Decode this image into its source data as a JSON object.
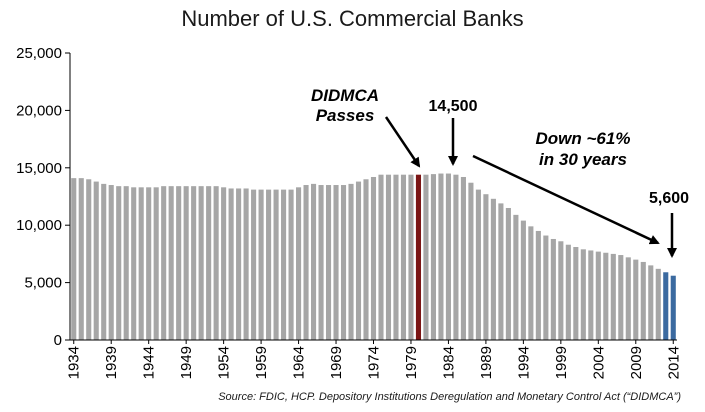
{
  "chart_data": {
    "type": "bar",
    "title": "Number of U.S. Commercial Banks",
    "xlabel": "",
    "ylabel": "",
    "ylim": [
      0,
      25000
    ],
    "yticks": [
      0,
      5000,
      10000,
      15000,
      20000,
      25000
    ],
    "ytick_labels": [
      "0",
      "5,000",
      "10,000",
      "15,000",
      "20,000",
      "25,000"
    ],
    "xtick_labels": [
      "1934",
      "1939",
      "1944",
      "1949",
      "1954",
      "1959",
      "1964",
      "1969",
      "1974",
      "1979",
      "1984",
      "1989",
      "1994",
      "1999",
      "2004",
      "2009",
      "2014"
    ],
    "categories": [
      1934,
      1935,
      1936,
      1937,
      1938,
      1939,
      1940,
      1941,
      1942,
      1943,
      1944,
      1945,
      1946,
      1947,
      1948,
      1949,
      1950,
      1951,
      1952,
      1953,
      1954,
      1955,
      1956,
      1957,
      1958,
      1959,
      1960,
      1961,
      1962,
      1963,
      1964,
      1965,
      1966,
      1967,
      1968,
      1969,
      1970,
      1971,
      1972,
      1973,
      1974,
      1975,
      1976,
      1977,
      1978,
      1979,
      1980,
      1981,
      1982,
      1983,
      1984,
      1985,
      1986,
      1987,
      1988,
      1989,
      1990,
      1991,
      1992,
      1993,
      1994,
      1995,
      1996,
      1997,
      1998,
      1999,
      2000,
      2001,
      2002,
      2003,
      2004,
      2005,
      2006,
      2007,
      2008,
      2009,
      2010,
      2011,
      2012,
      2013,
      2014
    ],
    "values": [
      14100,
      14100,
      14000,
      13800,
      13600,
      13500,
      13400,
      13400,
      13300,
      13300,
      13300,
      13300,
      13400,
      13400,
      13400,
      13400,
      13400,
      13400,
      13400,
      13400,
      13300,
      13200,
      13200,
      13200,
      13100,
      13100,
      13100,
      13100,
      13100,
      13100,
      13300,
      13500,
      13600,
      13500,
      13500,
      13500,
      13500,
      13600,
      13800,
      14000,
      14200,
      14400,
      14400,
      14400,
      14400,
      14400,
      14400,
      14400,
      14450,
      14500,
      14500,
      14400,
      14200,
      13700,
      13100,
      12700,
      12300,
      11900,
      11500,
      10900,
      10400,
      9900,
      9500,
      9100,
      8800,
      8600,
      8300,
      8100,
      7900,
      7800,
      7700,
      7600,
      7500,
      7400,
      7200,
      7000,
      6800,
      6500,
      6200,
      5900,
      5600
    ],
    "bar_colors": {
      "default": "#a6a6a6",
      "highlight": "#7b1515",
      "recent": "#3b6aa0"
    },
    "highlight_years": [
      1980
    ],
    "recent_years": [
      2013,
      2014
    ],
    "annotations": {
      "didmca_line1": "DIDMCA",
      "didmca_line2": "Passes",
      "peak": "14,500",
      "down_line1": "Down ~61%",
      "down_line2": "in 30 years",
      "end": "5,600"
    },
    "source": "Source: FDIC, HCP. Depository Institutions Deregulation and Monetary Control Act (“DIDMCA”)"
  }
}
